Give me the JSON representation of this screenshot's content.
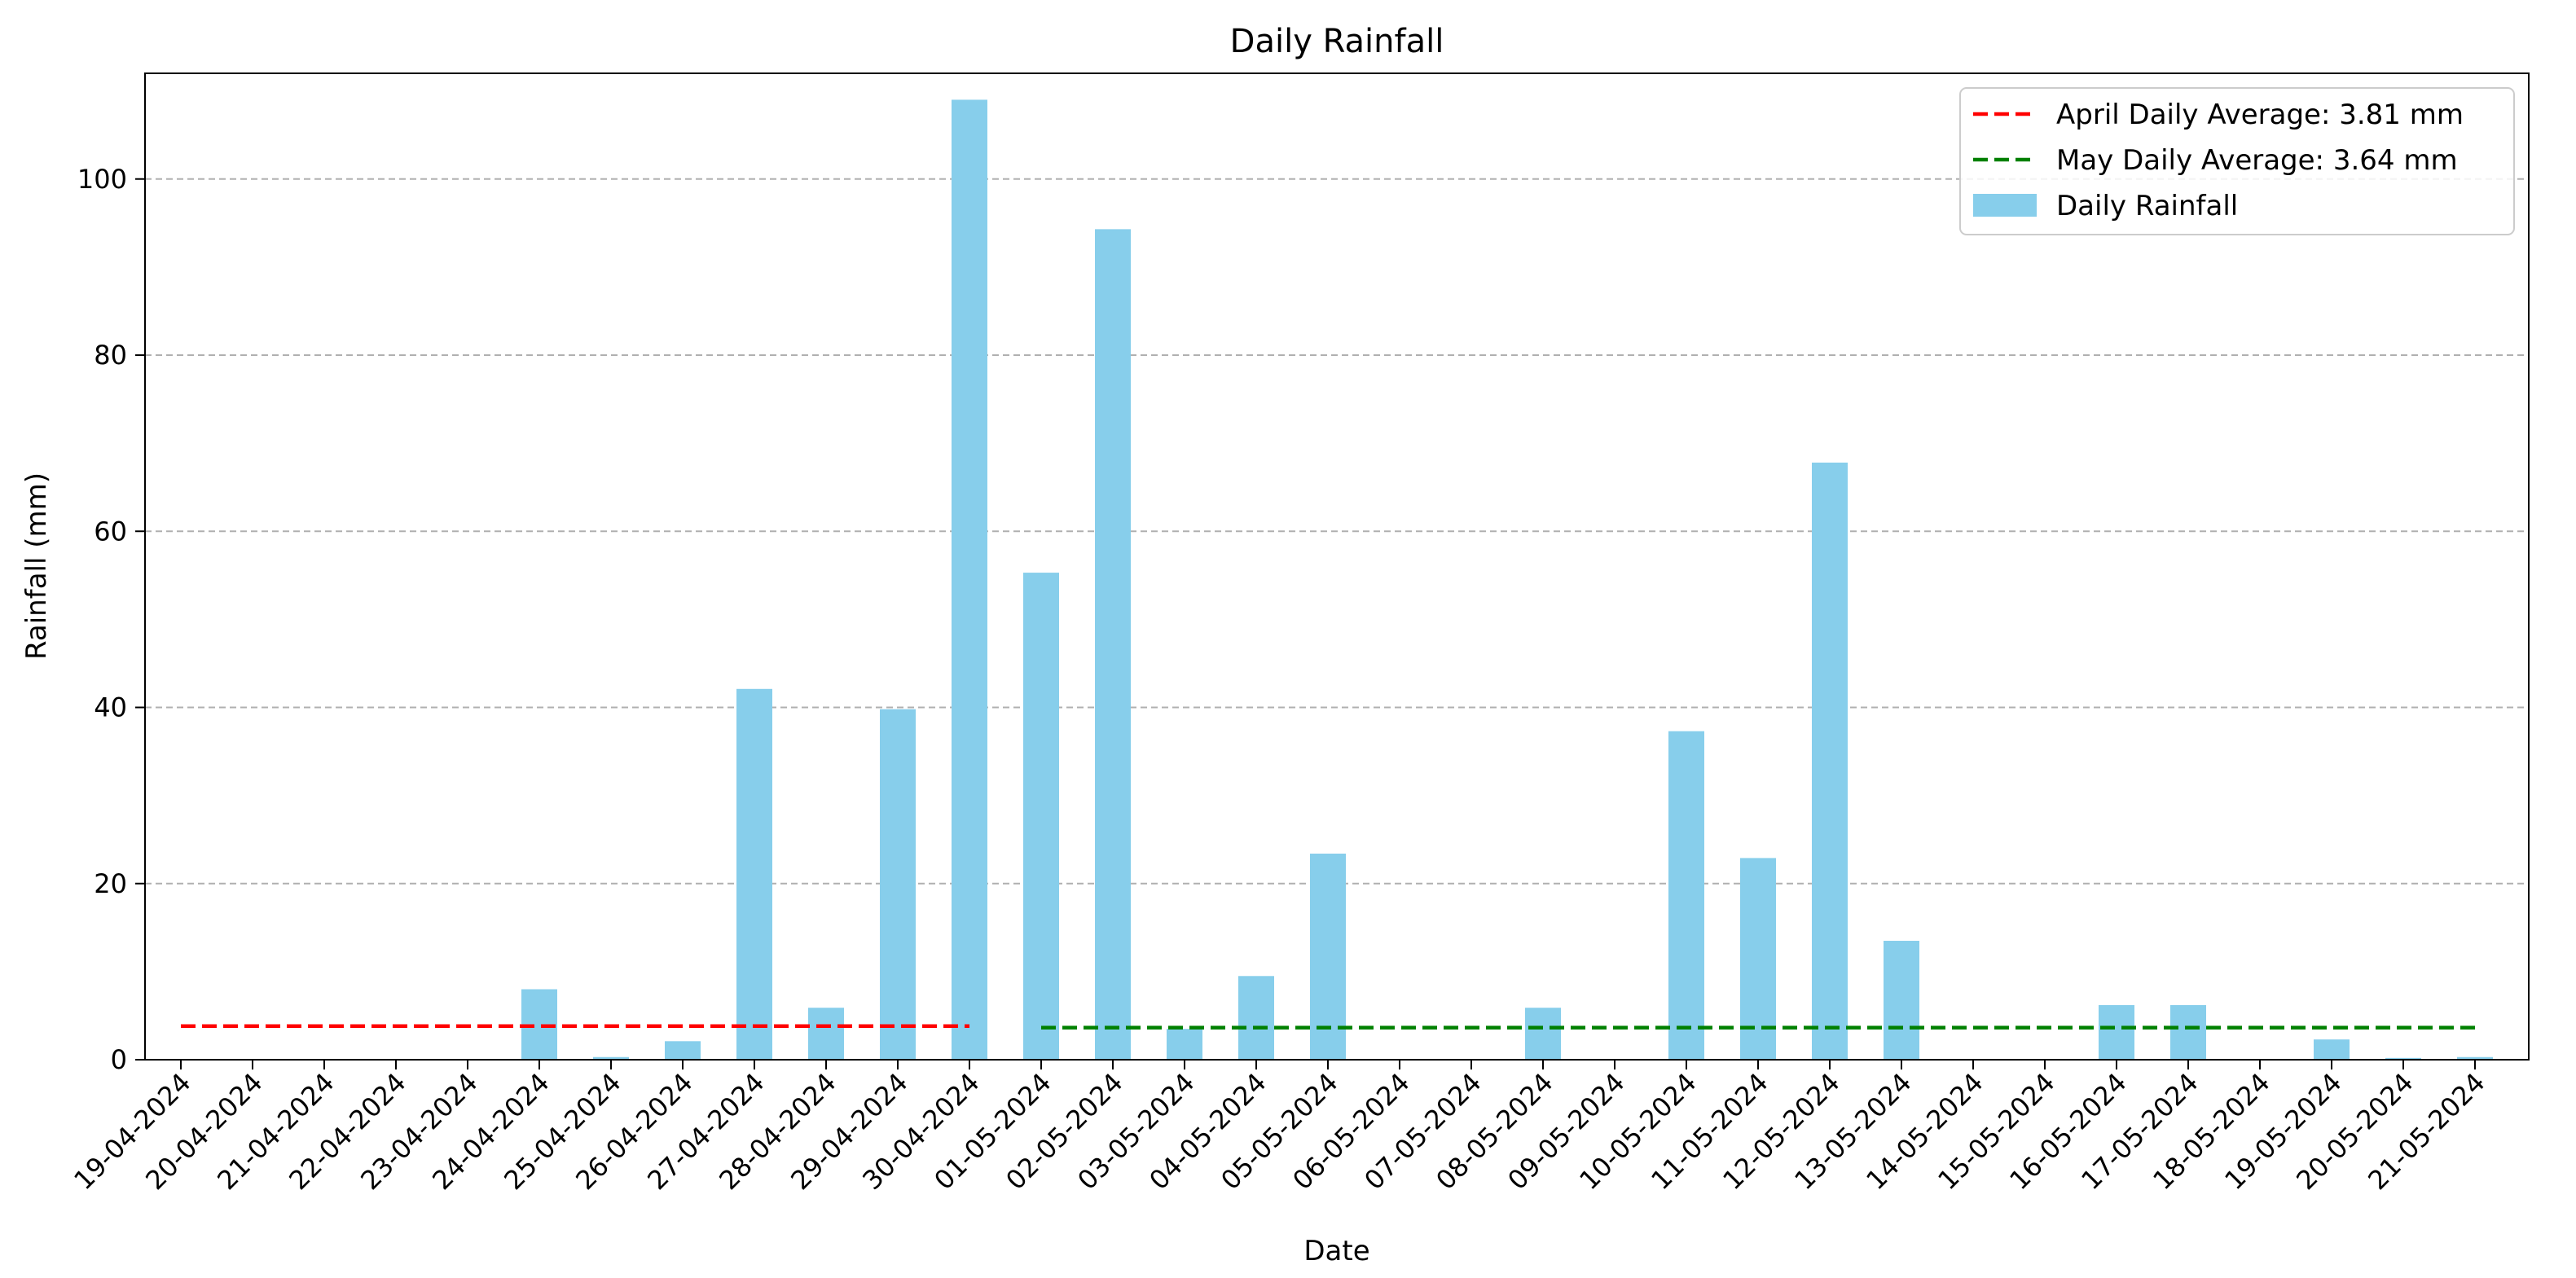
{
  "chart_data": {
    "type": "bar",
    "title": "Daily Rainfall",
    "xlabel": "Date",
    "ylabel": "Rainfall (mm)",
    "ylim": [
      0,
      112
    ],
    "yticks": [
      0,
      20,
      40,
      60,
      80,
      100
    ],
    "grid": "horizontal dashed",
    "legend_position": "top-right",
    "bar_color": "#87ceeb",
    "categories": [
      "19-04-2024",
      "20-04-2024",
      "21-04-2024",
      "22-04-2024",
      "23-04-2024",
      "24-04-2024",
      "25-04-2024",
      "26-04-2024",
      "27-04-2024",
      "28-04-2024",
      "29-04-2024",
      "30-04-2024",
      "01-05-2024",
      "02-05-2024",
      "03-05-2024",
      "04-05-2024",
      "05-05-2024",
      "06-05-2024",
      "07-05-2024",
      "08-05-2024",
      "09-05-2024",
      "10-05-2024",
      "11-05-2024",
      "12-05-2024",
      "13-05-2024",
      "14-05-2024",
      "15-05-2024",
      "16-05-2024",
      "17-05-2024",
      "18-05-2024",
      "19-05-2024",
      "20-05-2024",
      "21-05-2024"
    ],
    "values": [
      0,
      0,
      0,
      0,
      0,
      8.0,
      0.3,
      2.1,
      42.1,
      5.9,
      39.8,
      109.0,
      55.3,
      94.3,
      3.5,
      9.5,
      23.4,
      0,
      0,
      5.9,
      0,
      37.3,
      22.9,
      67.8,
      13.5,
      0,
      0,
      6.2,
      6.2,
      0,
      2.3,
      0.2,
      0.3
    ],
    "series": [
      {
        "name": "Daily Rainfall",
        "kind": "bar",
        "color": "#87ceeb"
      },
      {
        "name": "April Daily Average: 3.81 mm",
        "kind": "hline",
        "value": 3.81,
        "from": "19-04-2024",
        "to": "30-04-2024",
        "color": "#ff0000",
        "style": "dashed"
      },
      {
        "name": "May Daily Average: 3.64 mm",
        "kind": "hline",
        "value": 3.64,
        "from": "01-05-2024",
        "to": "21-05-2024",
        "color": "#008000",
        "style": "dashed"
      }
    ]
  }
}
